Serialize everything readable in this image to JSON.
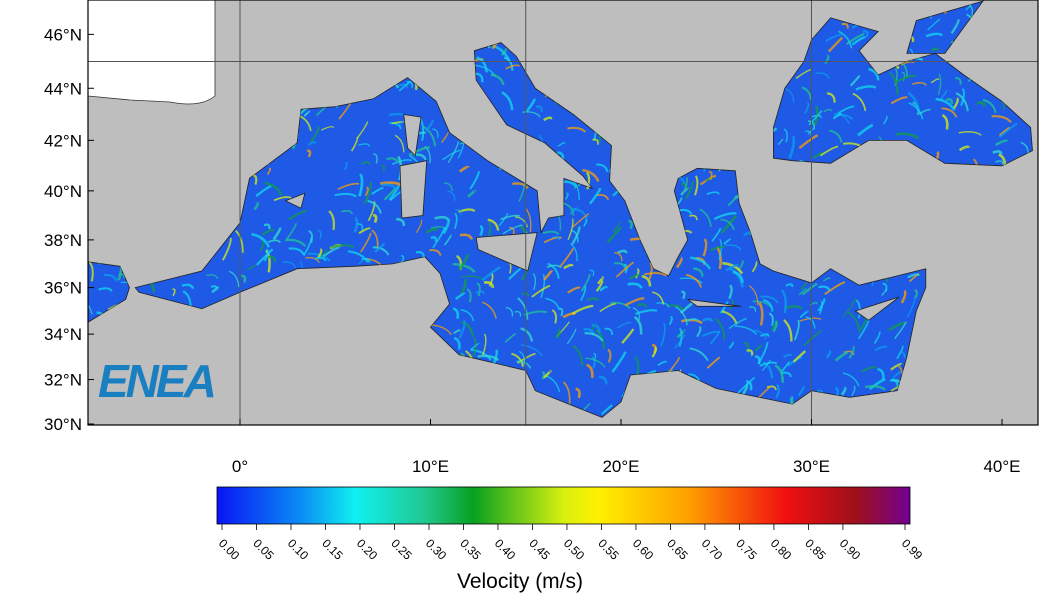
{
  "map": {
    "lat_ticks": [
      {
        "value": 46,
        "label": "46°N"
      },
      {
        "value": 44,
        "label": "44°N"
      },
      {
        "value": 42,
        "label": "42°N"
      },
      {
        "value": 40,
        "label": "40°N"
      },
      {
        "value": 38,
        "label": "38°N"
      },
      {
        "value": 36,
        "label": "36°N"
      },
      {
        "value": 34,
        "label": "34°N"
      },
      {
        "value": 32,
        "label": "32°N"
      },
      {
        "value": 30,
        "label": "30°N"
      }
    ],
    "lon_ticks": [
      {
        "value": 0,
        "label": "0°"
      },
      {
        "value": 10,
        "label": "10°E"
      },
      {
        "value": 20,
        "label": "20°E"
      },
      {
        "value": 30,
        "label": "30°E"
      },
      {
        "value": 40,
        "label": "40°E"
      }
    ],
    "logo": "ENEA",
    "colorbar": {
      "title": "Velocity (m/s)",
      "lim": [
        0,
        0.99
      ],
      "ticks": [
        {
          "value": 0,
          "label": "0.00"
        },
        {
          "value": 0.05,
          "label": "0.05"
        },
        {
          "value": 0.1,
          "label": "0.10"
        },
        {
          "value": 0.15,
          "label": "0.15"
        },
        {
          "value": 0.2,
          "label": "0.20"
        },
        {
          "value": 0.25,
          "label": "0.25"
        },
        {
          "value": 0.3,
          "label": "0.30"
        },
        {
          "value": 0.35,
          "label": "0.35"
        },
        {
          "value": 0.4,
          "label": "0.40"
        },
        {
          "value": 0.45,
          "label": "0.45"
        },
        {
          "value": 0.5,
          "label": "0.50"
        },
        {
          "value": 0.55,
          "label": "0.55"
        },
        {
          "value": 0.6,
          "label": "0.60"
        },
        {
          "value": 0.65,
          "label": "0.65"
        },
        {
          "value": 0.7,
          "label": "0.70"
        },
        {
          "value": 0.75,
          "label": "0.75"
        },
        {
          "value": 0.8,
          "label": "0.80"
        },
        {
          "value": 0.85,
          "label": "0.85"
        },
        {
          "value": 0.9,
          "label": "0.90"
        },
        {
          "value": 0.99,
          "label": "0.99"
        }
      ]
    }
  }
}
